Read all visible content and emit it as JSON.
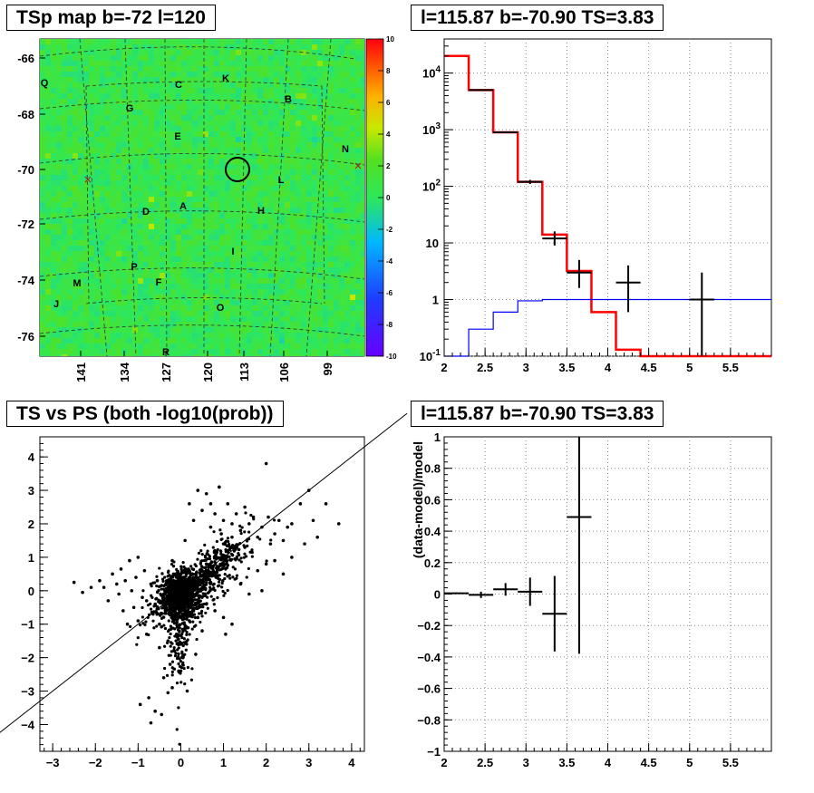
{
  "panels": {
    "map_title": "TSp map b=-72 l=120",
    "spectrum_title": "l=115.87 b=-70.90 TS=3.83",
    "scatter_title": "TS vs PS (both -log10(prob))",
    "ratio_title": "l=115.87 b=-70.90 TS=3.83",
    "ratio_ylabel": "(data-model)/model"
  },
  "chart_data": [
    {
      "type": "heatmap",
      "title": "TSp map b=-72 l=120",
      "colorbar_ticks": [
        "10",
        "8",
        "6",
        "4",
        "2",
        "0",
        "-2",
        "-4",
        "-6",
        "-8",
        "-10"
      ],
      "zlim": [
        -10,
        10
      ],
      "b_ticks": [
        "-66",
        "-68",
        "-70",
        "-72",
        "-74",
        "-76"
      ],
      "l_ticks": [
        "141",
        "134",
        "127",
        "120",
        "113",
        "106",
        "99"
      ],
      "dominant_value": 0.5,
      "region_labels": [
        "Q",
        "C",
        "K",
        "G",
        "B",
        "E",
        "N",
        "L",
        "D",
        "A",
        "H",
        "I",
        "P",
        "M",
        "F",
        "J",
        "O",
        "R"
      ],
      "colors": {
        "background_level": "#44dd44"
      }
    },
    {
      "type": "line",
      "title": "l=115.87 b=-70.90 TS=3.83",
      "yscale": "log",
      "xlim": [
        2,
        6
      ],
      "ylim": [
        0.1,
        40000
      ],
      "x_ticks": [
        "2",
        "2.5",
        "3",
        "3.5",
        "4",
        "4.5",
        "5",
        "5.5"
      ],
      "y_ticks": [
        "10^{4}",
        "10^{3}",
        "10^{2}",
        "10",
        "1",
        "10^{-1}"
      ],
      "grid": true,
      "series": [
        {
          "color": "#ff0000",
          "edges": [
            2,
            2.3,
            2.6,
            2.9,
            3.2,
            3.5,
            3.8,
            4.1,
            4.4,
            6
          ],
          "values": [
            20000,
            5000,
            900,
            120,
            14,
            3.2,
            0.6,
            0.13,
            0.1
          ]
        },
        {
          "color": "#0000ff",
          "edges": [
            2,
            2.3,
            2.6,
            2.9,
            3.2,
            3.5,
            6
          ],
          "values": [
            0.05,
            0.3,
            0.6,
            0.95,
            1.0,
            1.0
          ]
        }
      ],
      "data_points": [
        {
          "x": 2.45,
          "xerr": 0.15,
          "y": 5000,
          "ylo": 4900,
          "yhi": 5100
        },
        {
          "x": 2.75,
          "xerr": 0.15,
          "y": 900,
          "ylo": 870,
          "yhi": 930
        },
        {
          "x": 3.05,
          "xerr": 0.15,
          "y": 120,
          "ylo": 110,
          "yhi": 130
        },
        {
          "x": 3.35,
          "xerr": 0.15,
          "y": 12,
          "ylo": 9,
          "yhi": 16
        },
        {
          "x": 3.65,
          "xerr": 0.15,
          "y": 3,
          "ylo": 1.6,
          "yhi": 5
        },
        {
          "x": 4.25,
          "xerr": 0.15,
          "y": 2,
          "ylo": 0.6,
          "yhi": 4
        },
        {
          "x": 5.15,
          "xerr": 0.15,
          "y": 1,
          "ylo": 0.1,
          "yhi": 3
        }
      ]
    },
    {
      "type": "scatter",
      "title": "TS vs PS (both -log10(prob))",
      "xlim": [
        -3.3,
        4.3
      ],
      "ylim": [
        -4.8,
        4.6
      ],
      "x_ticks": [
        "-3",
        "-2",
        "-1",
        "0",
        "1",
        "2",
        "3",
        "4"
      ],
      "y_ticks": [
        "4",
        "3",
        "2",
        "1",
        "0",
        "-1",
        "-2",
        "-3",
        "-4"
      ],
      "reference_line": {
        "slope": 1,
        "intercept": 0
      },
      "points": [
        [
          -2.5,
          0.25
        ],
        [
          -2.3,
          -0.05
        ],
        [
          -2.1,
          0.1
        ],
        [
          -1.9,
          0.3
        ],
        [
          -1.8,
          0.1
        ],
        [
          -1.7,
          -0.3
        ],
        [
          -1.6,
          0.5
        ],
        [
          -1.5,
          0.2
        ],
        [
          -1.45,
          -0.1
        ],
        [
          -1.4,
          0.65
        ],
        [
          -1.35,
          -0.6
        ],
        [
          -1.3,
          0.3
        ],
        [
          -1.25,
          -1.0
        ],
        [
          -1.2,
          0.9
        ],
        [
          -1.15,
          0.0
        ],
        [
          -1.1,
          -0.5
        ],
        [
          -1.05,
          0.4
        ],
        [
          -1.0,
          -0.9
        ],
        [
          -1.0,
          1.0
        ],
        [
          -0.95,
          -3.4
        ],
        [
          -0.9,
          -0.2
        ],
        [
          -0.85,
          0.6
        ],
        [
          -0.8,
          -1.3
        ],
        [
          -0.75,
          -3.2
        ],
        [
          -0.7,
          0.2
        ],
        [
          -0.7,
          -3.95
        ],
        [
          -0.65,
          -0.7
        ],
        [
          -0.6,
          -3.6
        ],
        [
          -0.55,
          0.3
        ],
        [
          -0.5,
          -1.7
        ],
        [
          -0.45,
          -3.7
        ],
        [
          -0.4,
          -2.6
        ],
        [
          -0.3,
          -3.05
        ],
        [
          -0.25,
          -2.2
        ],
        [
          -0.2,
          -2.9
        ],
        [
          -0.15,
          -1.8
        ],
        [
          -0.05,
          -2.4
        ],
        [
          -0.1,
          -1.3
        ],
        [
          0.0,
          -1.6
        ],
        [
          0.05,
          -2.0
        ],
        [
          0.1,
          -1.1
        ],
        [
          0.2,
          -0.9
        ],
        [
          0.15,
          -3.0
        ],
        [
          0.3,
          -0.6
        ],
        [
          0.4,
          -0.8
        ],
        [
          0.5,
          -1.2
        ],
        [
          0.35,
          -1.9
        ],
        [
          0.6,
          -0.4
        ],
        [
          0.8,
          -0.6
        ],
        [
          1.0,
          -0.8
        ],
        [
          1.2,
          -1.0
        ],
        [
          1.05,
          -1.3
        ],
        [
          0.7,
          2.6
        ],
        [
          0.9,
          3.1
        ],
        [
          0.8,
          2.3
        ],
        [
          1.0,
          2.1
        ],
        [
          1.1,
          2.6
        ],
        [
          1.2,
          2.0
        ],
        [
          1.3,
          2.3
        ],
        [
          1.4,
          1.8
        ],
        [
          1.5,
          2.5
        ],
        [
          1.6,
          2.0
        ],
        [
          1.7,
          2.2
        ],
        [
          1.5,
          1.3
        ],
        [
          1.8,
          1.6
        ],
        [
          1.9,
          1.9
        ],
        [
          2.0,
          3.8
        ],
        [
          2.05,
          2.2
        ],
        [
          2.1,
          1.4
        ],
        [
          2.2,
          1.7
        ],
        [
          2.3,
          2.1
        ],
        [
          2.4,
          1.5
        ],
        [
          2.5,
          1.9
        ],
        [
          2.6,
          2.0
        ],
        [
          2.2,
          0.9
        ],
        [
          2.4,
          0.5
        ],
        [
          2.6,
          1.0
        ],
        [
          2.8,
          2.6
        ],
        [
          2.9,
          1.4
        ],
        [
          3.0,
          3.0
        ],
        [
          3.1,
          2.1
        ],
        [
          3.2,
          1.6
        ],
        [
          3.4,
          2.6
        ],
        [
          3.7,
          2.0
        ],
        [
          1.4,
          0.2
        ],
        [
          1.8,
          0.6
        ],
        [
          2.0,
          0.8
        ],
        [
          1.6,
          -0.1
        ],
        [
          1.9,
          0.0
        ],
        [
          -0.2,
          0.9
        ],
        [
          0.1,
          1.5
        ],
        [
          0.3,
          2.1
        ],
        [
          0.5,
          2.4
        ],
        [
          0.6,
          2.9
        ],
        [
          0.4,
          3.0
        ],
        [
          0.2,
          2.6
        ],
        [
          0.9,
          3.1
        ],
        [
          0.95,
          1.7
        ],
        [
          0.7,
          1.9
        ],
        [
          -0.3,
          -1.5
        ],
        [
          -0.5,
          -1.0
        ],
        [
          -0.8,
          -0.3
        ],
        [
          0.6,
          0.8
        ],
        [
          0.8,
          1.2
        ],
        [
          1.0,
          1.4
        ],
        [
          1.2,
          1.6
        ],
        [
          0.3,
          0.4
        ],
        [
          0.5,
          0.6
        ],
        [
          -0.6,
          -0.4
        ],
        [
          -0.4,
          -0.1
        ]
      ]
    },
    {
      "type": "scatter",
      "title": "l=115.87 b=-70.90 TS=3.83",
      "ylabel": "(data-model)/model",
      "xlim": [
        2,
        6
      ],
      "ylim": [
        -1,
        1
      ],
      "x_ticks": [
        "2",
        "2.5",
        "3",
        "3.5",
        "4",
        "4.5",
        "5",
        "5.5"
      ],
      "y_ticks": [
        "1",
        "0.8",
        "0.6",
        "0.4",
        "0.2",
        "0",
        "-0.2",
        "-0.4",
        "-0.6",
        "-0.8",
        "-1"
      ],
      "grid": true,
      "points": [
        {
          "x": 2.15,
          "xerr": 0.15,
          "y": 0.005,
          "yerr": 0.005
        },
        {
          "x": 2.45,
          "xerr": 0.15,
          "y": -0.005,
          "yerr": 0.02
        },
        {
          "x": 2.75,
          "xerr": 0.15,
          "y": 0.03,
          "yerr": 0.04
        },
        {
          "x": 3.05,
          "xerr": 0.15,
          "y": 0.015,
          "yerr": 0.09
        },
        {
          "x": 3.35,
          "xerr": 0.15,
          "y": -0.125,
          "yerr": 0.24
        },
        {
          "x": 3.65,
          "xerr": 0.15,
          "y": 0.49,
          "yerr": 0.87
        }
      ]
    }
  ]
}
